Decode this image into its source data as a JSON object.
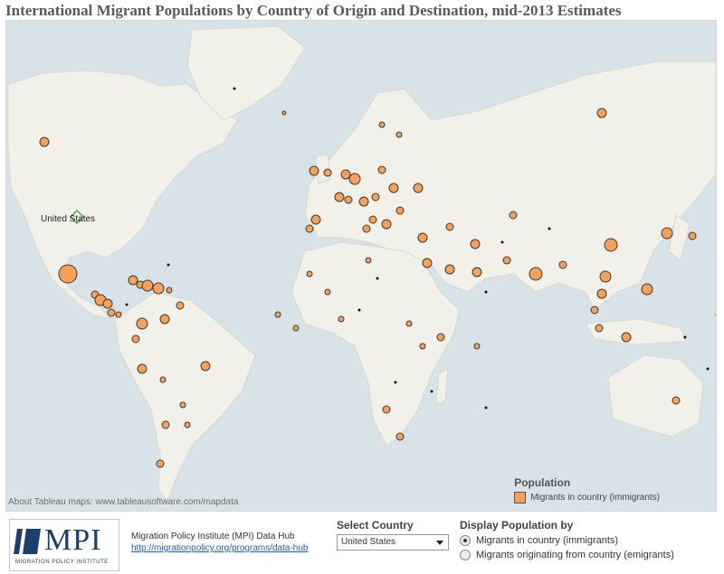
{
  "title": "International Migrant Populations by Country of Origin and Destination, mid-2013 Estimates",
  "map": {
    "selected_country_label": "United States",
    "attribution": "About Tableau maps: www.tableausoftware.com/mapdata",
    "colors": {
      "ocean": "#d7e3e9",
      "land": "#f1f1e9",
      "border": "#ffffff",
      "bubble": "#f6a05a",
      "bubble_stroke": "#3a3a3a",
      "selected": "#4caf50"
    }
  },
  "legend": {
    "title": "Population",
    "item": "Migrants in country (immigrants)"
  },
  "footer": {
    "logo_text": "MPI",
    "logo_subtext": "MIGRATION POLICY INSTITUTE",
    "hub_name": "Migration Policy Institute (MPI) Data Hub",
    "hub_link": "http://migrationpolicy.org/programs/data-hub",
    "select_label": "Select Country",
    "select_value": "United States",
    "display_label": "Display Population by",
    "options": [
      {
        "label": "Migrants in country (immigrants)",
        "selected": true
      },
      {
        "label": "Migrants originating from country (emigrants)",
        "selected": false
      }
    ]
  }
}
